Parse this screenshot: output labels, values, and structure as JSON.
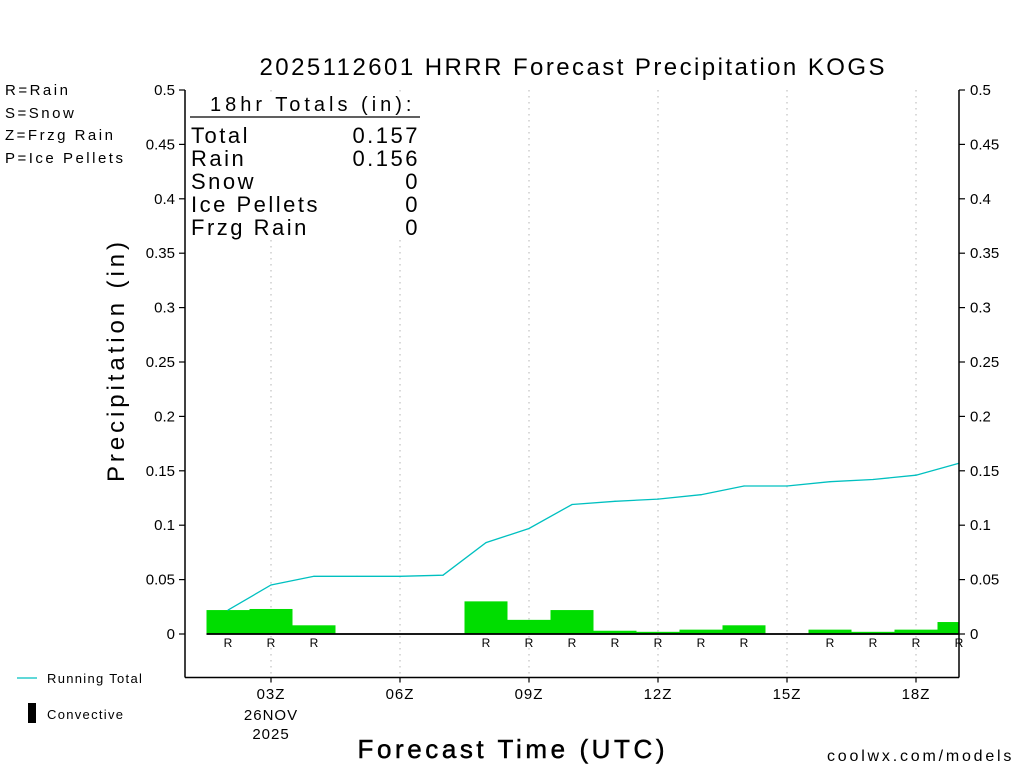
{
  "chart_data": {
    "type": "bar",
    "title": "2025112601 HRRR Forecast Precipitation KOGS",
    "xlabel": "Forecast Time (UTC)",
    "ylabel": "Precipitation (in)",
    "xlim": [
      1,
      19
    ],
    "ylim": [
      -0.04,
      0.5
    ],
    "grid_x": true,
    "xticks": [
      3,
      6,
      9,
      12,
      15,
      18
    ],
    "xtick_labels": [
      "03Z",
      "06Z",
      "09Z",
      "12Z",
      "15Z",
      "18Z"
    ],
    "date_label": [
      "26NOV",
      "2025"
    ],
    "yticks": [
      0,
      0.05,
      0.1,
      0.15,
      0.2,
      0.25,
      0.3,
      0.35,
      0.4,
      0.45,
      0.5
    ],
    "ytick_labels": [
      "0",
      "0.05",
      "0.1",
      "0.15",
      "0.2",
      "0.25",
      "0.3",
      "0.35",
      "0.4",
      "0.45",
      "0.5"
    ],
    "hours": [
      2,
      3,
      4,
      5,
      6,
      7,
      8,
      9,
      10,
      11,
      12,
      13,
      14,
      15,
      16,
      17,
      18,
      19
    ],
    "hourly_precip": {
      "color": "#00dd00",
      "values": [
        0.022,
        0.023,
        0.008,
        0,
        0,
        0,
        0.03,
        0.013,
        0.022,
        0.003,
        0.002,
        0.004,
        0.008,
        0,
        0.004,
        0.002,
        0.004,
        0.011
      ]
    },
    "running_total": {
      "name": "Running Total",
      "color": "#00c0c0",
      "values": [
        0.022,
        0.045,
        0.053,
        0.053,
        0.053,
        0.054,
        0.084,
        0.097,
        0.119,
        0.122,
        0.124,
        0.128,
        0.136,
        0.136,
        0.14,
        0.142,
        0.146,
        0.157
      ]
    },
    "convective": {
      "name": "Convective",
      "color": "#000000",
      "values": [
        0,
        0,
        0,
        0,
        0,
        0,
        0,
        0,
        0,
        0,
        0,
        0,
        0,
        0,
        0,
        0,
        0,
        0
      ]
    },
    "precip_type": [
      "R",
      "R",
      "R",
      "",
      "",
      "",
      "R",
      "R",
      "R",
      "R",
      "R",
      "R",
      "R",
      "",
      "R",
      "R",
      "R",
      "R"
    ],
    "precip_type_color": "#22cc22"
  },
  "precip_type_legend": [
    {
      "text": "R=Rain",
      "color": "#22dd22"
    },
    {
      "text": "S=Snow",
      "color": "#3355ee"
    },
    {
      "text": "Z=Frzg Rain",
      "color": "#ee8833"
    },
    {
      "text": "P=Ice Pellets",
      "color": "#ee2299"
    }
  ],
  "totals": {
    "heading": "18hr Totals (in):",
    "rows": [
      {
        "label": "Total",
        "value": "0.157"
      },
      {
        "label": "Rain",
        "value": "0.156"
      },
      {
        "label": "Snow",
        "value": "0"
      },
      {
        "label": "Ice Pellets",
        "value": "0"
      },
      {
        "label": "Frzg Rain",
        "value": "0"
      }
    ]
  },
  "credit": {
    "text": "coolwx.com/models",
    "color": "#dd2244"
  }
}
